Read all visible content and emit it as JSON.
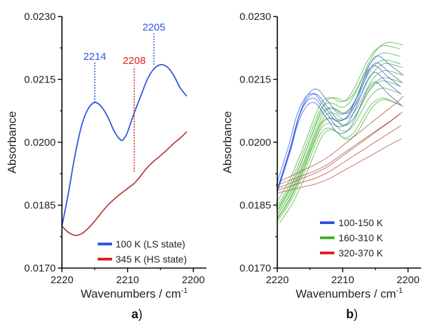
{
  "colors": {
    "blue": "#2f55e0",
    "red": "#e02020",
    "darkred": "#b0473a",
    "green": "#44b030",
    "axis": "#000000"
  },
  "chart_data": [
    {
      "panel": "a",
      "panel_label": "a",
      "panel_suffix": ")",
      "type": "line",
      "xlabel": "Wavenumbers / cm",
      "xlabel_sup": "-1",
      "ylabel": "Absorbance",
      "xlim": [
        2220,
        2198
      ],
      "ylim": [
        0.017,
        0.023
      ],
      "x_ticks": [
        "2220",
        "2210",
        "2200"
      ],
      "y_ticks": [
        "0.0170",
        "0.0185",
        "0.0200",
        "0.0215",
        "0.0230"
      ],
      "legend_position": "bottom-right",
      "series": [
        {
          "name": "100 K (LS state)",
          "color": "#2f55e0",
          "x": [
            2220,
            2219,
            2218,
            2217,
            2216,
            2215,
            2214,
            2213,
            2212,
            2211,
            2210.5,
            2210,
            2209,
            2208,
            2207,
            2206,
            2205,
            2204,
            2203,
            2202,
            2201
          ],
          "y": [
            0.018,
            0.0188,
            0.0197,
            0.0204,
            0.0208,
            0.02095,
            0.02085,
            0.0206,
            0.02025,
            0.02005,
            0.0201,
            0.02025,
            0.0207,
            0.0211,
            0.0215,
            0.02175,
            0.02185,
            0.0218,
            0.0216,
            0.0213,
            0.0211
          ]
        },
        {
          "name": "345 K (HS state)",
          "color": "#b0473a",
          "x": [
            2220,
            2219,
            2218,
            2217,
            2216,
            2215,
            2214,
            2213,
            2212,
            2211,
            2210,
            2209,
            2208,
            2207,
            2206,
            2205,
            2204,
            2203,
            2202,
            2201
          ],
          "y": [
            0.018,
            0.01785,
            0.01778,
            0.01782,
            0.01795,
            0.01812,
            0.01832,
            0.0185,
            0.01865,
            0.01878,
            0.0189,
            0.01902,
            0.0192,
            0.0194,
            0.01955,
            0.01968,
            0.01982,
            0.01997,
            0.0201,
            0.02025
          ]
        }
      ],
      "annotations": [
        {
          "text": "2214",
          "x": 2215,
          "y_from": 0.02095,
          "y_to": 0.0219,
          "color": "#2f55e0"
        },
        {
          "text": "2208",
          "x": 2209,
          "y_from": 0.0193,
          "y_to": 0.0218,
          "color": "#e02020"
        },
        {
          "text": "2205",
          "x": 2206,
          "y_from": 0.02185,
          "y_to": 0.0226,
          "color": "#2f55e0"
        }
      ]
    },
    {
      "panel": "b",
      "panel_label": "b",
      "panel_suffix": ")",
      "type": "line",
      "xlabel": "Wavenumbers / cm",
      "xlabel_sup": "-1",
      "ylabel": "Absorbance",
      "xlim": [
        2220,
        2198
      ],
      "ylim": [
        0.017,
        0.023
      ],
      "x_ticks": [
        "2220",
        "2210",
        "2200"
      ],
      "y_ticks": [
        "0.0170",
        "0.0185",
        "0.0200",
        "0.0215",
        "0.0230"
      ],
      "legend_position": "bottom-right",
      "groups": [
        {
          "name": "100-150 K",
          "color": "#2f55e0",
          "x": [
            2220,
            2218,
            2217,
            2216,
            2215,
            2214,
            2213,
            2212,
            2211,
            2210,
            2209,
            2208,
            2207,
            2206,
            2205,
            2204,
            2203,
            2201
          ],
          "y_base": [
            0.0189,
            0.0199,
            0.0205,
            0.0209,
            0.0211,
            0.0211,
            0.0209,
            0.0207,
            0.0205,
            0.02048,
            0.0206,
            0.0209,
            0.0213,
            0.02165,
            0.0218,
            0.0217,
            0.02155,
            0.0213
          ],
          "offsets": [
            -0.0003,
            -0.00015,
            0.0,
            0.00015,
            0.0003
          ]
        },
        {
          "name": "160-310 K",
          "color": "#44b030",
          "x": [
            2220,
            2218,
            2216,
            2214,
            2213,
            2212,
            2211,
            2210,
            2209,
            2208,
            2207,
            2206,
            2205,
            2204,
            2203,
            2201
          ],
          "y_base": [
            0.0183,
            0.0188,
            0.0195,
            0.0203,
            0.0206,
            0.0207,
            0.02065,
            0.02055,
            0.0206,
            0.0208,
            0.0211,
            0.0214,
            0.0216,
            0.0217,
            0.0217,
            0.0216
          ],
          "offsets": [
            -0.0006,
            -0.00045,
            -0.0003,
            -0.00015,
            0.0,
            0.00015,
            0.0003,
            0.00045,
            0.0006,
            0.00075,
            -0.00075
          ]
        },
        {
          "name": "320-370 K",
          "color": "#b0473a",
          "x": [
            2220,
            2218,
            2216,
            2214,
            2212,
            2210,
            2208,
            2206,
            2204,
            2202,
            2201
          ],
          "y_base": [
            0.01885,
            0.01895,
            0.01905,
            0.01915,
            0.0193,
            0.0195,
            0.0197,
            0.0199,
            0.0201,
            0.0203,
            0.0204
          ],
          "offsets": [
            -0.0002,
            0.0,
            0.0002,
            0.0004,
            0.0007
          ]
        }
      ]
    }
  ]
}
